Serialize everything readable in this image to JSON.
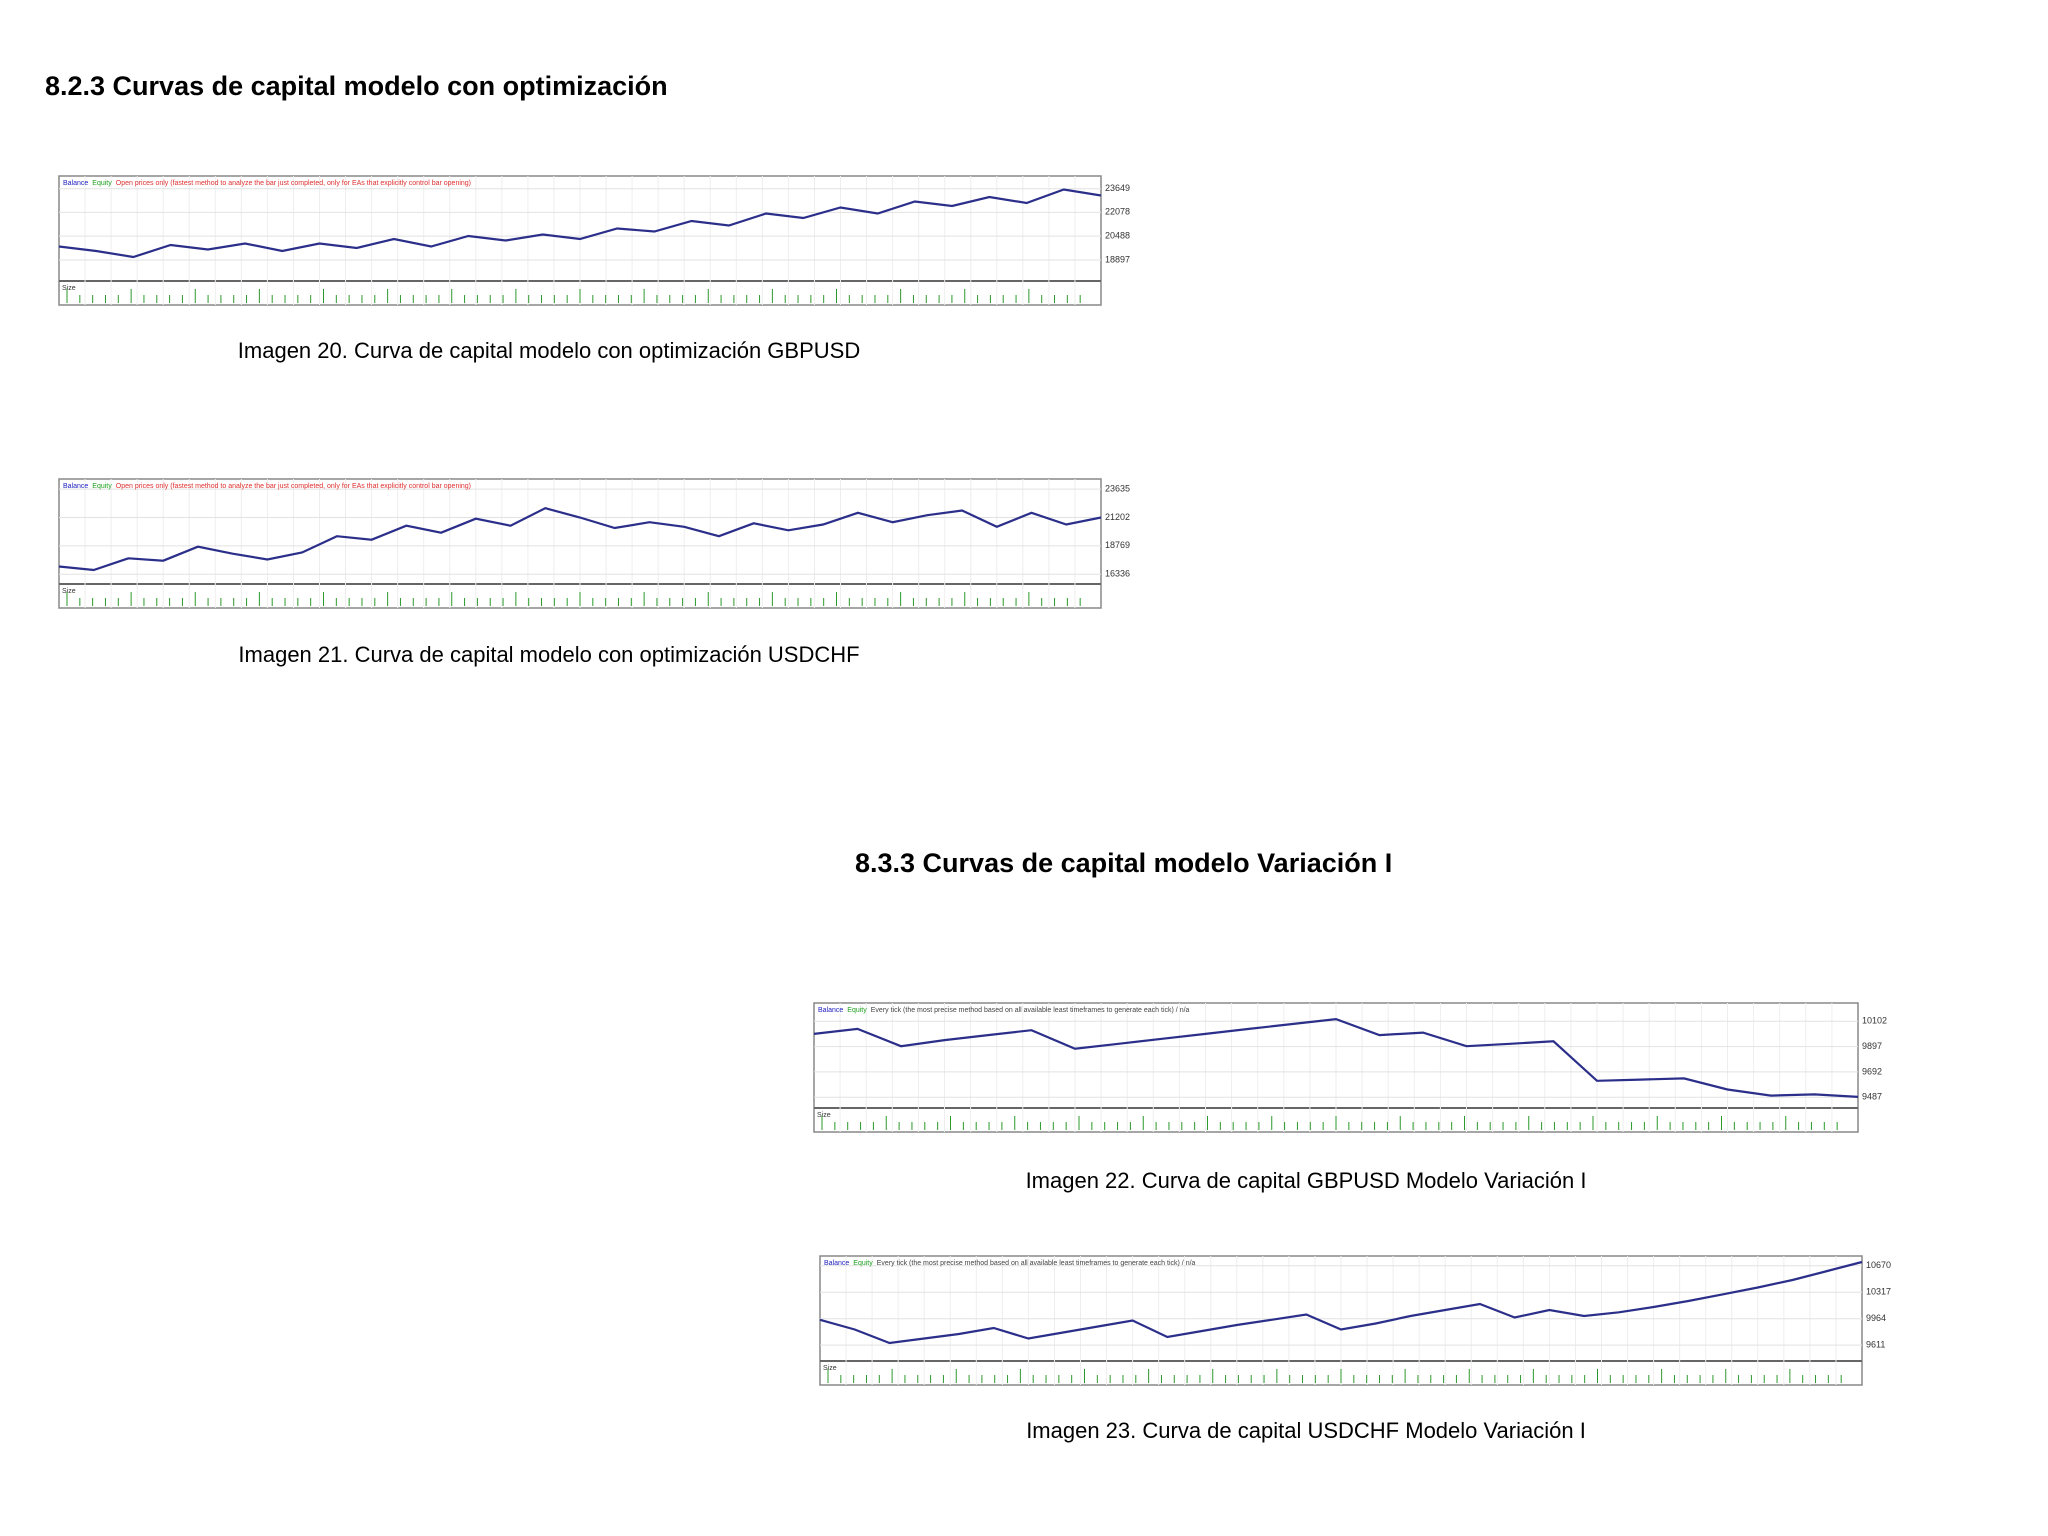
{
  "headings": [
    "8.2.3 Curvas de capital modelo con optimización",
    "8.3.3   Curvas de capital modelo Variación I"
  ],
  "figures": [
    {
      "caption": "Imagen 20. Curva de capital modelo con optimización GBPUSD",
      "chart": {
        "type": "line",
        "color": "#2b2f8a",
        "volume_label": "Size",
        "legend": [
          {
            "text": "Balance",
            "color": "#2020c0"
          },
          {
            "text": "Equity",
            "color": "#20a020"
          },
          {
            "text": "Open prices only (fastest method to analyze the bar just completed, only for EAs that explicitly control bar opening)",
            "color": "#e03030"
          }
        ],
        "values": [
          19800,
          19500,
          19100,
          19900,
          19600,
          20000,
          19500,
          20000,
          19700,
          20300,
          19800,
          20500,
          20200,
          20600,
          20300,
          21000,
          20800,
          21500,
          21200,
          22000,
          21700,
          22400,
          22000,
          22800,
          22500,
          23100,
          22700,
          23600,
          23200
        ],
        "ylim": [
          17500,
          24500
        ],
        "yticks": [
          23649,
          22078,
          20488,
          18897
        ],
        "grid": true
      }
    },
    {
      "caption": "Imagen 21. Curva de capital modelo con optimización USDCHF",
      "chart": {
        "type": "line",
        "color": "#2b2f8a",
        "volume_label": "Size",
        "legend": [
          {
            "text": "Balance",
            "color": "#2020c0"
          },
          {
            "text": "Equity",
            "color": "#20a020"
          },
          {
            "text": "Open prices only (fastest method to analyze the bar just completed, only for EAs that explicitly control bar opening)",
            "color": "#e03030"
          }
        ],
        "values": [
          17000,
          16700,
          17700,
          17500,
          18700,
          18100,
          17600,
          18200,
          19600,
          19300,
          20500,
          19900,
          21100,
          20500,
          22000,
          21200,
          20300,
          20800,
          20400,
          19600,
          20700,
          20100,
          20600,
          21600,
          20800,
          21400,
          21800,
          20400,
          21600,
          20600,
          21200
        ],
        "ylim": [
          15500,
          24500
        ],
        "yticks": [
          23635,
          21202,
          18769,
          16336
        ],
        "grid": true
      }
    },
    {
      "caption": "Imagen 22. Curva de capital GBPUSD Modelo Variación I",
      "chart": {
        "type": "line",
        "color": "#2b2f8a",
        "volume_label": "Size",
        "legend": [
          {
            "text": "Balance",
            "color": "#2020c0"
          },
          {
            "text": "Equity",
            "color": "#20a020"
          },
          {
            "text": "Every tick (the most precise method based on all available least timeframes to generate each tick) / n/a",
            "color": "#444444"
          }
        ],
        "values": [
          10000,
          10040,
          9900,
          9950,
          9990,
          10030,
          9880,
          9920,
          9960,
          10000,
          10040,
          10080,
          10120,
          9990,
          10010,
          9900,
          9920,
          9940,
          9620,
          9630,
          9640,
          9550,
          9500,
          9510,
          9490
        ],
        "ylim": [
          9400,
          10250
        ],
        "yticks": [
          10102,
          9897,
          9692,
          9487
        ],
        "grid": true
      }
    },
    {
      "caption": "Imagen 23. Curva de capital USDCHF Modelo Variación I",
      "chart": {
        "type": "line",
        "color": "#2b2f8a",
        "volume_label": "Size",
        "legend": [
          {
            "text": "Balance",
            "color": "#2020c0"
          },
          {
            "text": "Equity",
            "color": "#20a020"
          },
          {
            "text": "Every tick (the most precise method based on all available least timeframes to generate each tick) / n/a",
            "color": "#444444"
          }
        ],
        "values": [
          9950,
          9820,
          9640,
          9700,
          9760,
          9840,
          9700,
          9780,
          9860,
          9940,
          9720,
          9800,
          9880,
          9950,
          10020,
          9820,
          9900,
          10000,
          10080,
          10160,
          9980,
          10080,
          10000,
          10050,
          10120,
          10200,
          10290,
          10380,
          10480,
          10600,
          10720
        ],
        "ylim": [
          9400,
          10800
        ],
        "yticks": [
          10670,
          10317,
          9964,
          9611
        ],
        "grid": true
      }
    }
  ]
}
